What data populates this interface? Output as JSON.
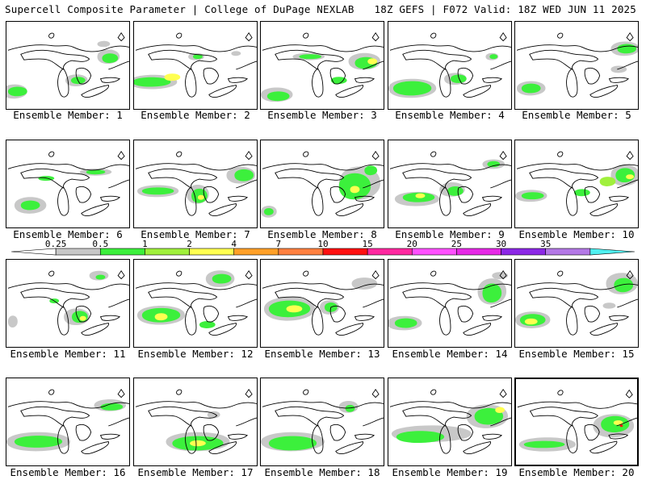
{
  "header": {
    "left": "Supercell Composite Parameter | College of DuPage NEXLAB",
    "right": "18Z GEFS | F072 Valid: 18Z WED JUN 11 2025"
  },
  "member_label_prefix": "Ensemble Member:",
  "members": [
    {
      "id": 1,
      "label": "Ensemble Member: 1"
    },
    {
      "id": 2,
      "label": "Ensemble Member: 2"
    },
    {
      "id": 3,
      "label": "Ensemble Member: 3"
    },
    {
      "id": 4,
      "label": "Ensemble Member: 4"
    },
    {
      "id": 5,
      "label": "Ensemble Member: 5"
    },
    {
      "id": 6,
      "label": "Ensemble Member: 6"
    },
    {
      "id": 7,
      "label": "Ensemble Member: 7"
    },
    {
      "id": 8,
      "label": "Ensemble Member: 8"
    },
    {
      "id": 9,
      "label": "Ensemble Member: 9"
    },
    {
      "id": 10,
      "label": "Ensemble Member: 10"
    },
    {
      "id": 11,
      "label": "Ensemble Member: 11"
    },
    {
      "id": 12,
      "label": "Ensemble Member: 12"
    },
    {
      "id": 13,
      "label": "Ensemble Member: 13"
    },
    {
      "id": 14,
      "label": "Ensemble Member: 14"
    },
    {
      "id": 15,
      "label": "Ensemble Member: 15"
    },
    {
      "id": 16,
      "label": "Ensemble Member: 16"
    },
    {
      "id": 17,
      "label": "Ensemble Member: 17"
    },
    {
      "id": 18,
      "label": "Ensemble Member: 18"
    },
    {
      "id": 19,
      "label": "Ensemble Member: 19"
    },
    {
      "id": 20,
      "label": "Ensemble Member: 20",
      "selected": true
    }
  ],
  "colorbar": {
    "tick_labels": [
      "0.25",
      "0.5",
      "1",
      "2",
      "4",
      "7",
      "10",
      "15",
      "20",
      "25",
      "30",
      "35"
    ],
    "colors": [
      "#ffffff",
      "#c8c8c8",
      "#3cf03c",
      "#a0f03c",
      "#ffff50",
      "#ffa028",
      "#ff8040",
      "#ff1010",
      "#ff28a0",
      "#ff50ff",
      "#e628e6",
      "#8c28e6",
      "#b478e6",
      "#50f0f0"
    ]
  }
}
